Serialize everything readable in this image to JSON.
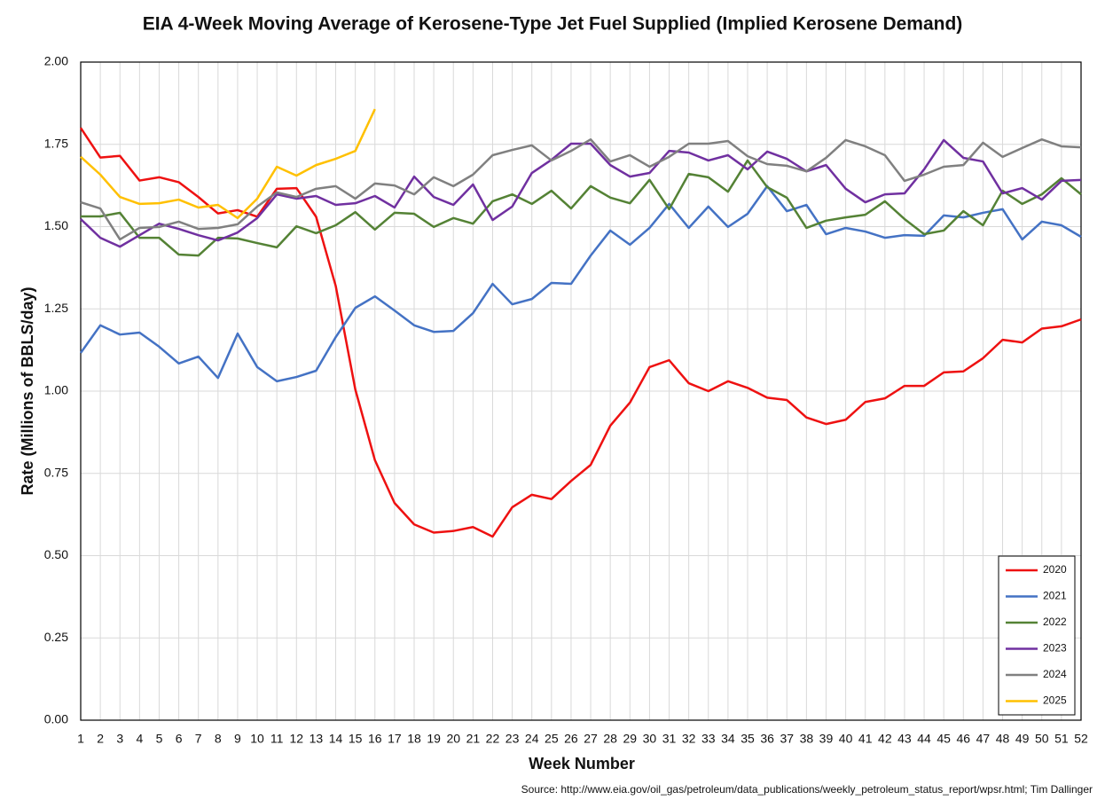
{
  "chart_data": {
    "type": "line",
    "title": "EIA 4-Week Moving Average of Kerosene-Type Jet Fuel Supplied (Implied Kerosene Demand)",
    "x_label": "Week Number",
    "y_label": "Rate (Millions of BBLS/day)",
    "source": "Source: http://www.eia.gov/oil_gas/petroleum/data_publications/weekly_petroleum_status_report/wpsr.html; Tim Dallinger",
    "x": [
      1,
      2,
      3,
      4,
      5,
      6,
      7,
      8,
      9,
      10,
      11,
      12,
      13,
      14,
      15,
      16,
      17,
      18,
      19,
      20,
      21,
      22,
      23,
      24,
      25,
      26,
      27,
      28,
      29,
      30,
      31,
      32,
      33,
      34,
      35,
      36,
      37,
      38,
      39,
      40,
      41,
      42,
      43,
      44,
      45,
      46,
      47,
      48,
      49,
      50,
      51,
      52
    ],
    "xlim": [
      1,
      52
    ],
    "xticks": [
      1,
      2,
      3,
      4,
      5,
      6,
      7,
      8,
      9,
      10,
      11,
      12,
      13,
      14,
      15,
      16,
      17,
      18,
      19,
      20,
      21,
      22,
      23,
      24,
      25,
      26,
      27,
      28,
      29,
      30,
      31,
      32,
      33,
      34,
      35,
      36,
      37,
      38,
      39,
      40,
      41,
      42,
      43,
      44,
      45,
      46,
      47,
      48,
      49,
      50,
      51,
      52
    ],
    "ylim": [
      0,
      2
    ],
    "yticks": [
      {
        "value": 0,
        "label": "0.00"
      },
      {
        "value": 0.25,
        "label": "0.25"
      },
      {
        "value": 0.5,
        "label": "0.50"
      },
      {
        "value": 0.75,
        "label": "0.75"
      },
      {
        "value": 1,
        "label": "1.00"
      },
      {
        "value": 1.25,
        "label": "1.25"
      },
      {
        "value": 1.5,
        "label": "1.50"
      },
      {
        "value": 1.75,
        "label": "1.75"
      },
      {
        "value": 2,
        "label": "2.00"
      }
    ],
    "grid": true,
    "legend": "lower right",
    "series": [
      {
        "name": "2020",
        "color": "#ee1111",
        "values": [
          1.8,
          1.71,
          1.715,
          1.64,
          1.65,
          1.635,
          1.59,
          1.54,
          1.55,
          1.53,
          1.615,
          1.617,
          1.53,
          1.32,
          1.005,
          0.79,
          0.66,
          0.595,
          0.57,
          0.575,
          0.587,
          0.558,
          0.647,
          0.685,
          0.672,
          0.727,
          0.776,
          0.895,
          0.965,
          1.073,
          1.094,
          1.024,
          1.0,
          1.03,
          1.01,
          0.98,
          0.973,
          0.92,
          0.9,
          0.913,
          0.967,
          0.978,
          1.016,
          1.016,
          1.057,
          1.06,
          1.1,
          1.156,
          1.148,
          1.19,
          1.197,
          1.218
        ]
      },
      {
        "name": "2021",
        "color": "#4472c4",
        "values": [
          1.116,
          1.2,
          1.172,
          1.178,
          1.135,
          1.084,
          1.105,
          1.04,
          1.175,
          1.073,
          1.03,
          1.043,
          1.062,
          1.164,
          1.253,
          1.288,
          1.245,
          1.2,
          1.18,
          1.183,
          1.237,
          1.326,
          1.264,
          1.28,
          1.329,
          1.326,
          1.412,
          1.488,
          1.445,
          1.496,
          1.569,
          1.496,
          1.561,
          1.499,
          1.539,
          1.623,
          1.547,
          1.566,
          1.477,
          1.496,
          1.485,
          1.466,
          1.474,
          1.472,
          1.534,
          1.528,
          1.542,
          1.553,
          1.461,
          1.515,
          1.504,
          1.469
        ]
      },
      {
        "name": "2022",
        "color": "#548235",
        "values": [
          1.531,
          1.531,
          1.542,
          1.466,
          1.466,
          1.415,
          1.412,
          1.466,
          1.464,
          1.45,
          1.437,
          1.501,
          1.48,
          1.504,
          1.544,
          1.491,
          1.542,
          1.539,
          1.499,
          1.526,
          1.509,
          1.577,
          1.598,
          1.569,
          1.609,
          1.555,
          1.623,
          1.588,
          1.571,
          1.642,
          1.553,
          1.66,
          1.65,
          1.606,
          1.701,
          1.62,
          1.588,
          1.496,
          1.518,
          1.528,
          1.536,
          1.577,
          1.523,
          1.477,
          1.488,
          1.547,
          1.504,
          1.609,
          1.569,
          1.598,
          1.647,
          1.598
        ]
      },
      {
        "name": "2023",
        "color": "#7030a0",
        "values": [
          1.523,
          1.466,
          1.439,
          1.474,
          1.509,
          1.493,
          1.474,
          1.458,
          1.482,
          1.526,
          1.598,
          1.585,
          1.593,
          1.566,
          1.571,
          1.593,
          1.558,
          1.652,
          1.59,
          1.566,
          1.628,
          1.52,
          1.561,
          1.663,
          1.703,
          1.752,
          1.752,
          1.687,
          1.652,
          1.663,
          1.73,
          1.725,
          1.701,
          1.717,
          1.674,
          1.728,
          1.706,
          1.668,
          1.687,
          1.615,
          1.574,
          1.598,
          1.601,
          1.674,
          1.763,
          1.709,
          1.698,
          1.601,
          1.617,
          1.582,
          1.639,
          1.642
        ]
      },
      {
        "name": "2024",
        "color": "#808080",
        "values": [
          1.574,
          1.555,
          1.461,
          1.496,
          1.499,
          1.515,
          1.493,
          1.496,
          1.507,
          1.561,
          1.604,
          1.59,
          1.615,
          1.623,
          1.585,
          1.631,
          1.625,
          1.598,
          1.65,
          1.623,
          1.658,
          1.717,
          1.733,
          1.747,
          1.701,
          1.73,
          1.765,
          1.698,
          1.717,
          1.682,
          1.712,
          1.752,
          1.752,
          1.76,
          1.714,
          1.69,
          1.685,
          1.668,
          1.709,
          1.763,
          1.744,
          1.717,
          1.639,
          1.658,
          1.682,
          1.687,
          1.755,
          1.712,
          1.739,
          1.765,
          1.744,
          1.741
        ]
      },
      {
        "name": "2025",
        "color": "#ffc000",
        "values": [
          1.712,
          1.658,
          1.59,
          1.569,
          1.571,
          1.582,
          1.558,
          1.566,
          1.526,
          1.585,
          1.682,
          1.655,
          1.687,
          1.706,
          1.73,
          1.857,
          null,
          null,
          null,
          null,
          null,
          null,
          null,
          null,
          null,
          null,
          null,
          null,
          null,
          null,
          null,
          null,
          null,
          null,
          null,
          null,
          null,
          null,
          null,
          null,
          null,
          null,
          null,
          null,
          null,
          null,
          null,
          null,
          null,
          null,
          null,
          null
        ]
      }
    ]
  }
}
